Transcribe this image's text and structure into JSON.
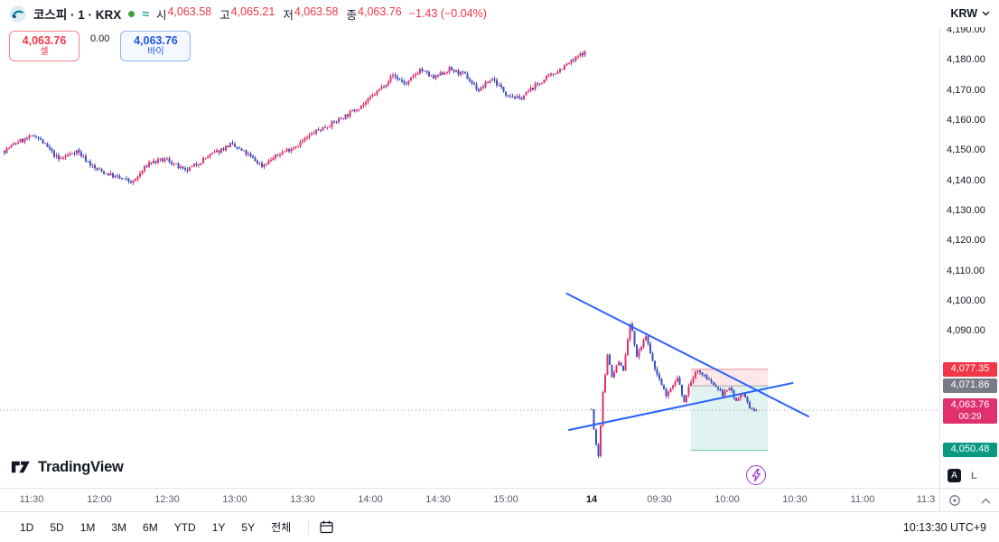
{
  "header": {
    "symbol_title": "코스피 · 1 · KRX",
    "ohlc": [
      {
        "label": "시",
        "value": "4,063.58"
      },
      {
        "label": "고",
        "value": "4,065.21"
      },
      {
        "label": "저",
        "value": "4,063.58"
      },
      {
        "label": "종",
        "value": "4,063.76"
      }
    ],
    "change": "−1.43 (−0.04%)",
    "values_color": "#f23645",
    "currency": "KRW"
  },
  "trade_panel": {
    "sell_price": "4,063.76",
    "sell_label": "셀",
    "spread": "0.00",
    "buy_price": "4,063.76",
    "buy_label": "바이"
  },
  "logo": {
    "text": "TradingView"
  },
  "axis_buttons": {
    "auto": "A",
    "log": "L"
  },
  "toolbar": {
    "ranges": [
      "1D",
      "5D",
      "1M",
      "3M",
      "6M",
      "YTD",
      "1Y",
      "5Y",
      "전체"
    ],
    "clock": "10:13:30 UTC+9"
  },
  "chart_data": {
    "type": "candlestick",
    "title": "코스피 · 1 · KRX",
    "interval": "1 minute",
    "ylim": [
      4038,
      4200
    ],
    "grid": false,
    "colors": {
      "up": "#e0306e",
      "down": "#3a4fc0",
      "trendline": "#2962ff",
      "current_line": "#9598a1",
      "stop_zone": "rgba(242,54,69,0.12)",
      "profit_zone": "rgba(8,153,129,0.12)"
    },
    "y_ticks": [
      {
        "p": 4190,
        "label": "4,190.00"
      },
      {
        "p": 4180,
        "label": "4,180.00"
      },
      {
        "p": 4170,
        "label": "4,170.00"
      },
      {
        "p": 4160,
        "label": "4,160.00"
      },
      {
        "p": 4150,
        "label": "4,150.00"
      },
      {
        "p": 4140,
        "label": "4,140.00"
      },
      {
        "p": 4130,
        "label": "4,130.00"
      },
      {
        "p": 4120,
        "label": "4,120.00"
      },
      {
        "p": 4110,
        "label": "4,110.00"
      },
      {
        "p": 4100,
        "label": "4,100.00"
      },
      {
        "p": 4090,
        "label": "4,090.00"
      }
    ],
    "x_labels": [
      {
        "text": "11:30",
        "s": 0,
        "t": 12
      },
      {
        "text": "12:00",
        "s": 0,
        "t": 42
      },
      {
        "text": "12:30",
        "s": 0,
        "t": 72
      },
      {
        "text": "13:00",
        "s": 0,
        "t": 102
      },
      {
        "text": "13:30",
        "s": 0,
        "t": 132
      },
      {
        "text": "14:00",
        "s": 0,
        "t": 162
      },
      {
        "text": "14:30",
        "s": 0,
        "t": 192
      },
      {
        "text": "15:00",
        "s": 0,
        "t": 222
      },
      {
        "text": "14",
        "s": 1,
        "t": 0,
        "bold": true
      },
      {
        "text": "09:30",
        "s": 1,
        "t": 30
      },
      {
        "text": "10:00",
        "s": 1,
        "t": 60
      },
      {
        "text": "10:30",
        "s": 1,
        "t": 90
      },
      {
        "text": "11:00",
        "s": 1,
        "t": 120
      },
      {
        "text": "11:3",
        "s": 1,
        "t": 148
      }
    ],
    "sessions": [
      {
        "name": "prev-day",
        "anchors": [
          [
            0,
            4150
          ],
          [
            6,
            4153
          ],
          [
            14,
            4155
          ],
          [
            24,
            4147
          ],
          [
            32,
            4150
          ],
          [
            40,
            4144
          ],
          [
            50,
            4141
          ],
          [
            57,
            4139.5
          ],
          [
            64,
            4146
          ],
          [
            72,
            4147
          ],
          [
            80,
            4143
          ],
          [
            90,
            4148
          ],
          [
            100,
            4152
          ],
          [
            107,
            4149
          ],
          [
            114,
            4145
          ],
          [
            122,
            4149
          ],
          [
            130,
            4152
          ],
          [
            137,
            4156
          ],
          [
            145,
            4159
          ],
          [
            152,
            4162
          ],
          [
            160,
            4166
          ],
          [
            167,
            4171
          ],
          [
            172,
            4175
          ],
          [
            178,
            4172
          ],
          [
            184,
            4177
          ],
          [
            190,
            4174
          ],
          [
            197,
            4177
          ],
          [
            204,
            4175
          ],
          [
            210,
            4170
          ],
          [
            216,
            4174
          ],
          [
            222,
            4169
          ],
          [
            228,
            4167
          ],
          [
            234,
            4171
          ],
          [
            240,
            4174
          ],
          [
            246,
            4177
          ],
          [
            252,
            4180
          ],
          [
            257,
            4183
          ]
        ]
      },
      {
        "name": "day-14",
        "anchors": [
          [
            0,
            4064
          ],
          [
            1,
            4058
          ],
          [
            3,
            4048
          ],
          [
            5,
            4070
          ],
          [
            7,
            4082
          ],
          [
            9,
            4075
          ],
          [
            12,
            4080
          ],
          [
            14,
            4077
          ],
          [
            17,
            4093
          ],
          [
            20,
            4082
          ],
          [
            24,
            4088
          ],
          [
            28,
            4078
          ],
          [
            33,
            4069
          ],
          [
            38,
            4074
          ],
          [
            41,
            4067
          ],
          [
            46,
            4077
          ],
          [
            50,
            4075
          ],
          [
            54,
            4072
          ],
          [
            58,
            4069
          ],
          [
            61,
            4071
          ],
          [
            64,
            4067
          ],
          [
            67,
            4069
          ],
          [
            70,
            4065
          ],
          [
            73,
            4063.76
          ]
        ]
      }
    ],
    "trendlines": [
      {
        "t1": -11,
        "p1": 4102.5,
        "t2": 96,
        "p2": 4061.7
      },
      {
        "t1": -10,
        "p1": 4057.2,
        "t2": 89,
        "p2": 4072.8
      }
    ],
    "position_tool": {
      "side": "short",
      "entry": 4071.86,
      "stop": 4077.35,
      "target": 4050.48,
      "t1": 44,
      "t2": 78
    },
    "current_price": 4063.76,
    "price_badges": [
      {
        "p": 4077.35,
        "label": "4,077.35",
        "bg": "#f23645"
      },
      {
        "p": 4071.86,
        "label": "4,071.86",
        "bg": "#787b86"
      },
      {
        "p": 4063.76,
        "label": "4,063.76",
        "sub": "00:29",
        "bg": "#e0306e"
      },
      {
        "p": 4050.48,
        "label": "4,050.48",
        "bg": "#089981"
      }
    ]
  }
}
